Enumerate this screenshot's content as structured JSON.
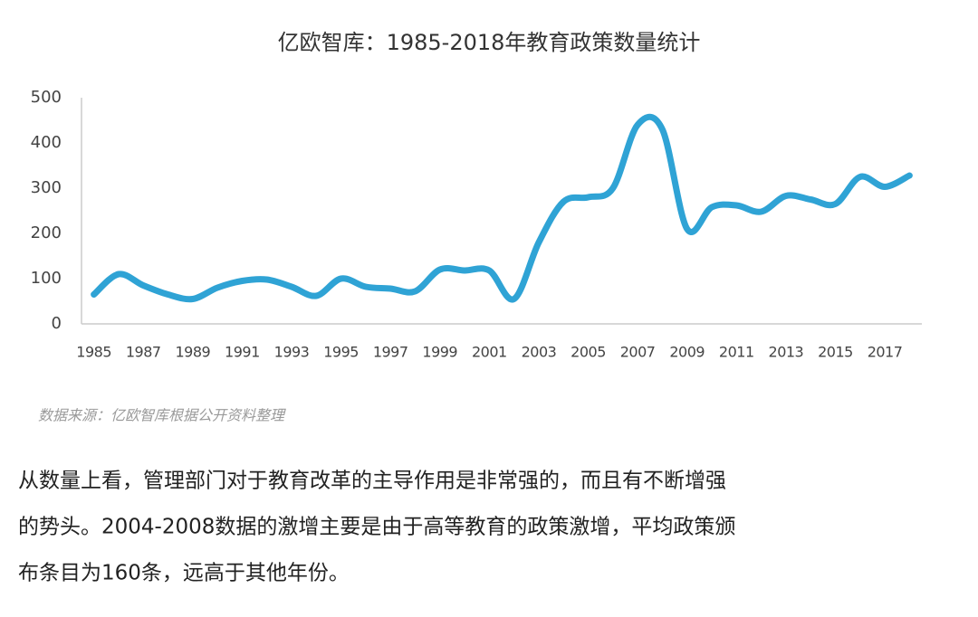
{
  "chart_data": {
    "type": "line",
    "title": "亿欧智库：1985-2018年教育政策数量统计",
    "x": [
      1985,
      1986,
      1987,
      1988,
      1989,
      1990,
      1991,
      1992,
      1993,
      1994,
      1995,
      1996,
      1997,
      1998,
      1999,
      2000,
      2001,
      2002,
      2003,
      2004,
      2005,
      2006,
      2007,
      2008,
      2009,
      2010,
      2011,
      2012,
      2013,
      2014,
      2015,
      2016,
      2017,
      2018
    ],
    "series": [
      {
        "color": "#2fa3d5",
        "values": [
          65,
          110,
          85,
          65,
          55,
          80,
          95,
          98,
          82,
          62,
          100,
          82,
          78,
          72,
          120,
          118,
          118,
          55,
          180,
          270,
          280,
          300,
          440,
          430,
          210,
          258,
          262,
          248,
          283,
          275,
          265,
          325,
          303,
          328
        ]
      }
    ],
    "xlim": [
      1984.5,
      2018.5
    ],
    "xticks": [
      1985,
      1987,
      1989,
      1991,
      1993,
      1995,
      1997,
      1999,
      2001,
      2003,
      2005,
      2007,
      2009,
      2011,
      2013,
      2015,
      2017
    ],
    "ylim": [
      0,
      500
    ],
    "yticks": [
      0,
      100,
      200,
      300,
      400,
      500
    ],
    "source": "数据来源：亿欧智库根据公开资料整理",
    "description": [
      "从数量上看，管理部门对于教育改革的主导作用是非常强的，而且有不断增强",
      "的势头。2004-2008数据的激增主要是由于高等教育的政策激增，平均政策颁",
      "布条目为160条，远高于其他年份。"
    ]
  }
}
